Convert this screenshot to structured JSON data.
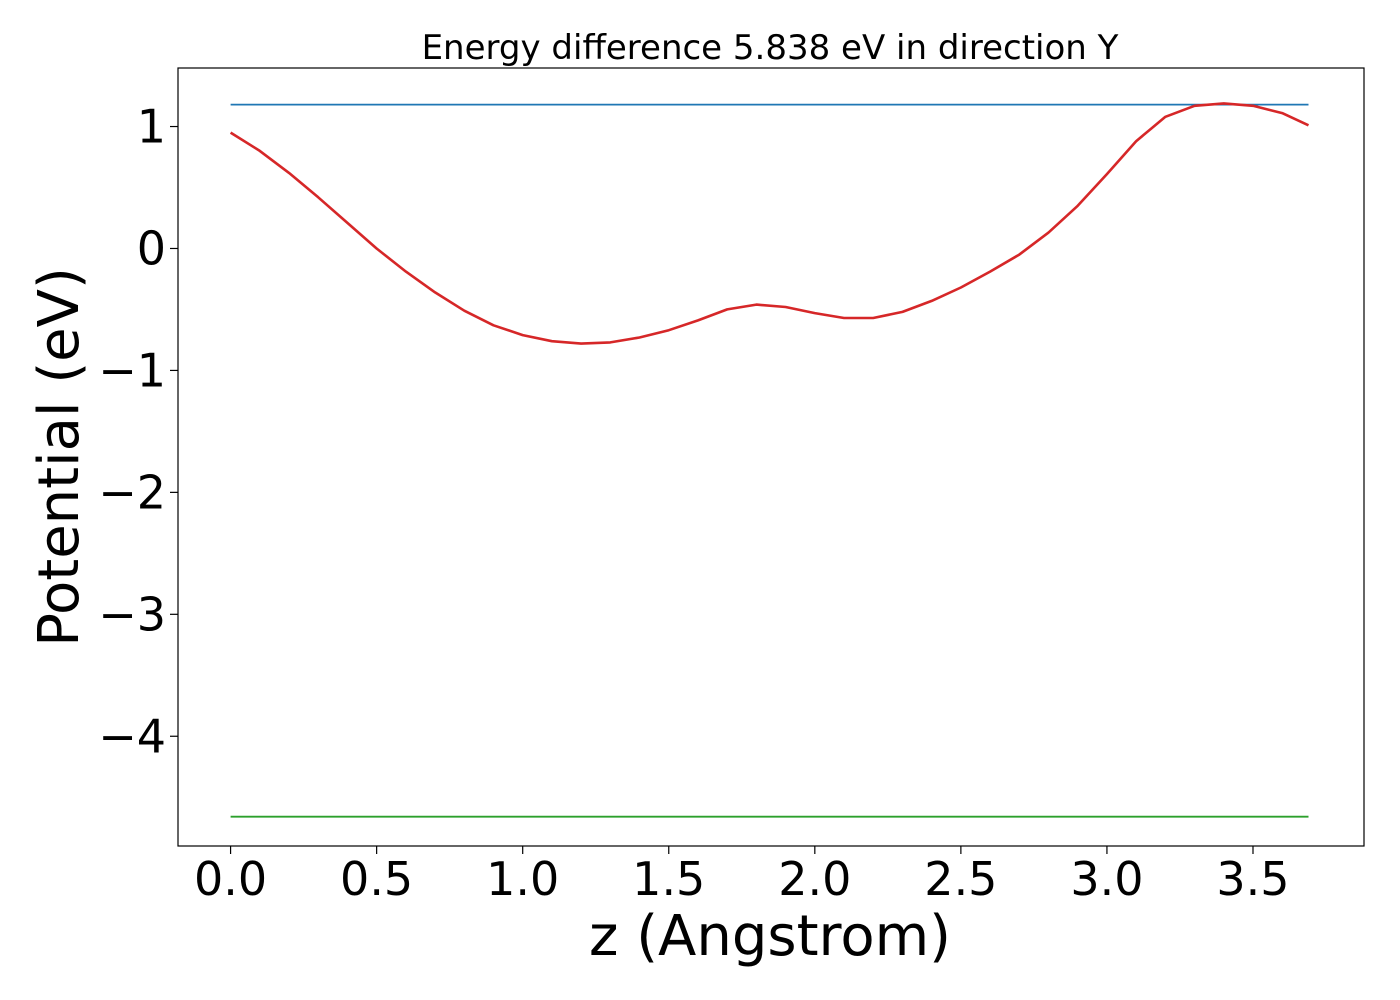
{
  "chart_data": {
    "type": "line",
    "title": "Energy difference 5.838 eV in direction Y",
    "xlabel": "z (Angstrom)",
    "ylabel": "Potential (eV)",
    "xlim": [
      -0.18,
      3.88
    ],
    "ylim": [
      -4.9,
      1.48
    ],
    "xticks": [
      0.0,
      0.5,
      1.0,
      1.5,
      2.0,
      2.5,
      3.0,
      3.5
    ],
    "xtick_labels": [
      "0.0",
      "0.5",
      "1.0",
      "1.5",
      "2.0",
      "2.5",
      "3.0",
      "3.5"
    ],
    "yticks": [
      1,
      0,
      -1,
      -2,
      -3,
      -4
    ],
    "ytick_labels": [
      "1",
      "0",
      "−1",
      "−2",
      "−3",
      "−4"
    ],
    "grid": false,
    "legend": "none",
    "series": [
      {
        "color": "#1f77b4",
        "x": [
          0.0,
          3.69
        ],
        "y": [
          1.18,
          1.18
        ]
      },
      {
        "color": "#2ca02c",
        "x": [
          0.0,
          3.69
        ],
        "y": [
          -4.66,
          -4.66
        ]
      },
      {
        "color": "#d62728",
        "x": [
          0.0,
          0.1,
          0.2,
          0.3,
          0.4,
          0.5,
          0.6,
          0.7,
          0.8,
          0.9,
          1.0,
          1.1,
          1.2,
          1.3,
          1.4,
          1.5,
          1.6,
          1.7,
          1.8,
          1.9,
          2.0,
          2.1,
          2.2,
          2.3,
          2.4,
          2.5,
          2.6,
          2.7,
          2.8,
          2.9,
          3.0,
          3.1,
          3.2,
          3.3,
          3.4,
          3.5,
          3.6,
          3.69
        ],
        "y": [
          0.95,
          0.8,
          0.62,
          0.42,
          0.21,
          0.0,
          -0.19,
          -0.36,
          -0.51,
          -0.63,
          -0.71,
          -0.76,
          -0.78,
          -0.77,
          -0.73,
          -0.67,
          -0.59,
          -0.5,
          -0.46,
          -0.48,
          -0.53,
          -0.57,
          -0.57,
          -0.52,
          -0.43,
          -0.32,
          -0.19,
          -0.05,
          0.13,
          0.35,
          0.61,
          0.88,
          1.08,
          1.17,
          1.19,
          1.17,
          1.11,
          1.01
        ]
      }
    ]
  }
}
